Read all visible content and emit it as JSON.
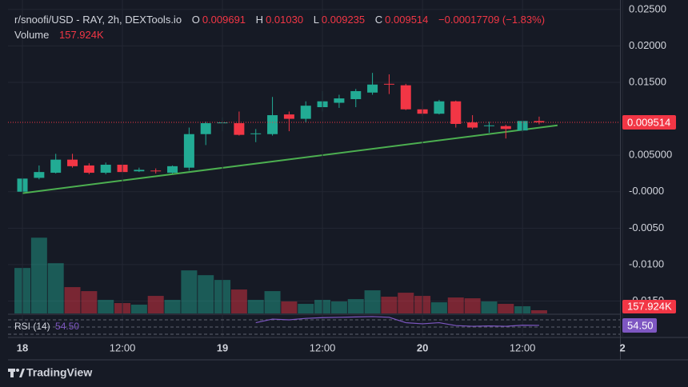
{
  "chart_data": {
    "type": "candlestick",
    "title": "r/snoofi/USD - RAY, 2h, DEXTools.io",
    "ohlc_letters": {
      "open": "O",
      "high": "H",
      "low": "L",
      "close": "C"
    },
    "last_labels": {
      "open": "0.009691",
      "high": "0.01030",
      "low": "0.009235",
      "close": "0.009514"
    },
    "change_label": "−0.00017709 (−1.83%)",
    "up_color": "#22ab94",
    "down_color": "#f23645",
    "candles": {
      "x": [
        0,
        2,
        4,
        6,
        8,
        10,
        12,
        14,
        16,
        18,
        20,
        22,
        24,
        26,
        28,
        30,
        32,
        34,
        36,
        38,
        40,
        42,
        44,
        46,
        48,
        50,
        52,
        54,
        56,
        58,
        60,
        62
      ],
      "open": [
        0.0,
        0.0019,
        0.0026,
        0.0044,
        0.0036,
        0.0026,
        0.0037,
        0.0028,
        0.0029,
        0.0026,
        0.0033,
        0.0079,
        0.0094,
        0.0094,
        0.008,
        0.0079,
        0.0106,
        0.01,
        0.0116,
        0.0122,
        0.0127,
        0.0136,
        0.0148,
        0.0146,
        0.0113,
        0.0107,
        0.0124,
        0.0095,
        0.009,
        0.009,
        0.0084,
        0.009691
      ],
      "high": [
        0.002,
        0.0036,
        0.0052,
        0.0052,
        0.0039,
        0.004,
        0.0039,
        0.0033,
        0.0032,
        0.0036,
        0.0088,
        0.0096,
        0.0102,
        0.011,
        0.0086,
        0.013,
        0.011,
        0.0124,
        0.0138,
        0.0133,
        0.0141,
        0.0163,
        0.0161,
        0.0148,
        0.0125,
        0.0126,
        0.0125,
        0.0105,
        0.0096,
        0.0092,
        0.0098,
        0.0103
      ],
      "low": [
        -0.0002,
        0.0017,
        0.0025,
        0.0033,
        0.0024,
        0.0024,
        0.0026,
        0.0027,
        0.0025,
        0.0025,
        0.0029,
        0.0064,
        0.0083,
        0.0077,
        0.0068,
        0.0077,
        0.0083,
        0.0095,
        0.011,
        0.0115,
        0.0116,
        0.0133,
        0.0134,
        0.0112,
        0.0104,
        0.0106,
        0.0088,
        0.0086,
        0.0081,
        0.0073,
        0.0082,
        0.009235
      ],
      "close": [
        0.0018,
        0.0027,
        0.0044,
        0.0035,
        0.0026,
        0.0037,
        0.0027,
        0.003,
        0.0028,
        0.0035,
        0.0079,
        0.0094,
        0.0095,
        0.0078,
        0.008,
        0.0105,
        0.01,
        0.0118,
        0.0124,
        0.0128,
        0.0138,
        0.0147,
        0.0147,
        0.0113,
        0.0107,
        0.0124,
        0.0093,
        0.0088,
        0.0091,
        0.0086,
        0.0097,
        0.009514
      ]
    },
    "volume": {
      "name": "Volume",
      "values": [
        2252000,
        3753000,
        2489000,
        1304000,
        1106000,
        672000,
        514000,
        435000,
        869000,
        672000,
        2133000,
        1896000,
        1659000,
        1185000,
        672000,
        1106000,
        593000,
        474000,
        672000,
        593000,
        711000,
        1146000,
        830000,
        1027000,
        869000,
        553000,
        790000,
        751000,
        593000,
        474000,
        356000,
        157924
      ],
      "last_label": "157.924K",
      "ylim": [
        0,
        4000000
      ]
    },
    "rsi": {
      "name": "RSI (14)",
      "color": "#7e57c2",
      "values": [
        null,
        null,
        null,
        null,
        null,
        null,
        null,
        null,
        null,
        null,
        null,
        null,
        null,
        null,
        62,
        72,
        70,
        74,
        76,
        77,
        78,
        79,
        77,
        62,
        59,
        62,
        54,
        52,
        53,
        52,
        55,
        54.5
      ],
      "last_label": "54.50",
      "levels": [
        70,
        50,
        30
      ],
      "ylim": [
        23.3,
        83.3
      ]
    },
    "trendline": {
      "x": [
        0,
        64.2
      ],
      "y": [
        -0.0002,
        0.0091
      ],
      "color": "#4caf50"
    },
    "xlim": [
      -1.73,
      71.7
    ],
    "xticks": [
      {
        "value": 0,
        "label": "18"
      },
      {
        "value": 12,
        "label": "12:00"
      },
      {
        "value": 24,
        "label": "19"
      },
      {
        "value": 36,
        "label": "12:00"
      },
      {
        "value": 48,
        "label": "20"
      },
      {
        "value": 60,
        "label": "12:00"
      },
      {
        "value": 72,
        "label": "2"
      }
    ],
    "ylim": [
      -0.0167,
      0.0263
    ],
    "yticks": [
      {
        "value": 0.025,
        "label": "0.02500"
      },
      {
        "value": 0.02,
        "label": "0.02000"
      },
      {
        "value": 0.015,
        "label": "0.01500"
      },
      {
        "value": 0.005,
        "label": "0.005000"
      },
      {
        "value": 0,
        "label": "-0.0000"
      },
      {
        "value": -0.005,
        "label": "-0.0050"
      },
      {
        "value": -0.01,
        "label": "-0.0100"
      },
      {
        "value": -0.015,
        "label": "-0.0150"
      }
    ],
    "grid": true,
    "branding": "TradingView"
  }
}
